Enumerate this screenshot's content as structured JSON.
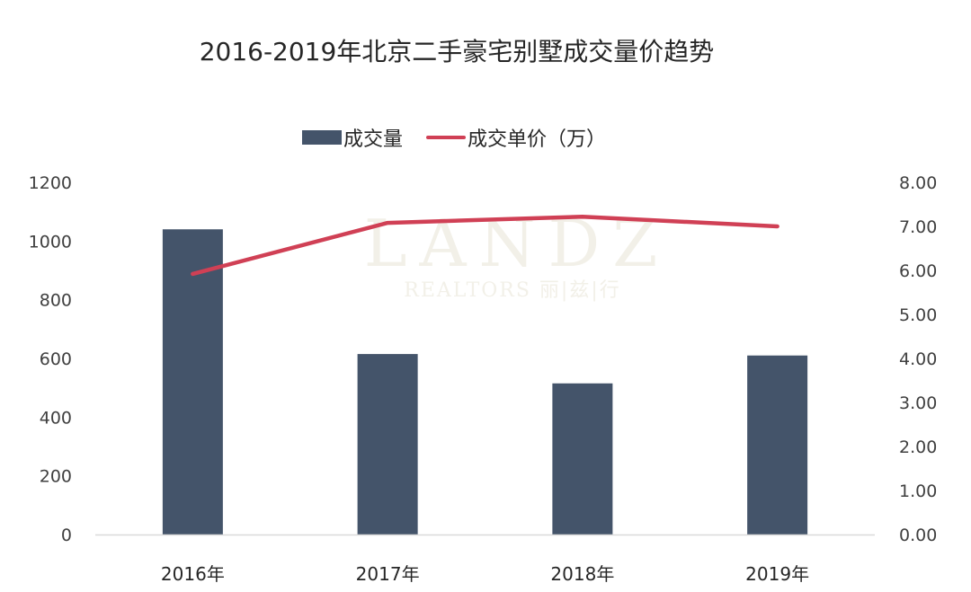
{
  "title": "2016-2019年北京二手豪宅别墅成交量价趋势",
  "legend": {
    "bar_label": "成交量",
    "line_label": "成交单价（万）"
  },
  "watermark": {
    "main": "LANDZ",
    "sub": "REALTORS 丽|兹|行"
  },
  "left_axis_ticks": [
    "1200",
    "1000",
    "800",
    "600",
    "400",
    "200",
    "0"
  ],
  "right_axis_ticks": [
    "8.00",
    "7.00",
    "6.00",
    "5.00",
    "4.00",
    "3.00",
    "2.00",
    "1.00",
    "0.00"
  ],
  "categories": [
    "2016年",
    "2017年",
    "2018年",
    "2019年"
  ],
  "colors": {
    "bar": "#44546a",
    "line": "#d04055",
    "axis_line": "#d9d9d9"
  },
  "chart_data": {
    "type": "bar",
    "title": "2016-2019年北京二手豪宅别墅成交量价趋势",
    "categories": [
      "2016年",
      "2017年",
      "2018年",
      "2019年"
    ],
    "series": [
      {
        "name": "成交量",
        "type": "bar",
        "axis": "left",
        "values": [
          1040,
          615,
          515,
          610
        ]
      },
      {
        "name": "成交单价（万）",
        "type": "line",
        "axis": "right",
        "values": [
          5.92,
          7.08,
          7.22,
          7.0
        ]
      }
    ],
    "xlabel": "",
    "ylabel": "",
    "ylim": [
      0,
      1200
    ],
    "y2lim": [
      0,
      8
    ],
    "legend_position": "top",
    "grid": false
  }
}
